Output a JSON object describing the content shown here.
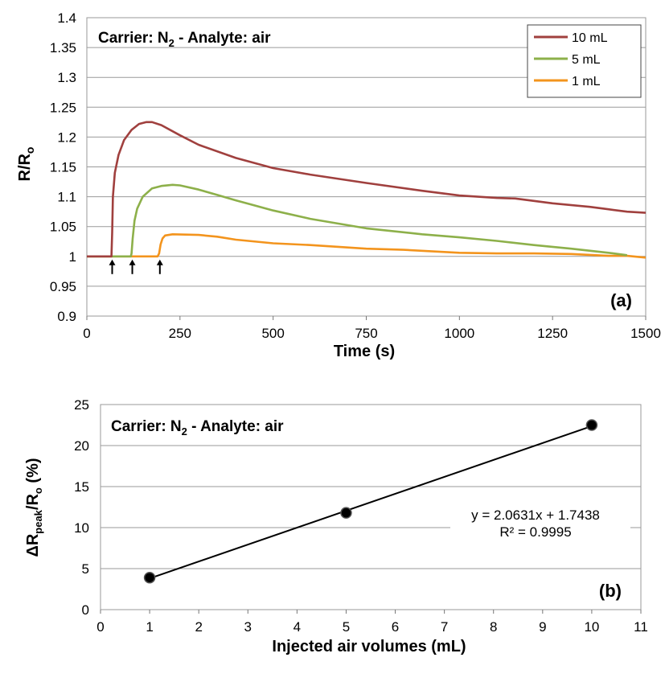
{
  "chart_data": [
    {
      "type": "line",
      "panel_label": "(a)",
      "annotation": {
        "prefix": "Carrier: N",
        "sub": "2",
        "suffix": " - Analyte: air"
      },
      "xlabel": "Time (s)",
      "ylabel": {
        "main": "R/R",
        "sub": "o"
      },
      "xlim": [
        0,
        1500
      ],
      "ylim": [
        0.9,
        1.4
      ],
      "xticks": [
        0,
        250,
        500,
        750,
        1000,
        1250,
        1500
      ],
      "yticks": [
        "0.9",
        "0.95",
        "1",
        "1.05",
        "1.1",
        "1.15",
        "1.2",
        "1.25",
        "1.3",
        "1.35",
        "1.4"
      ],
      "grid": "horizontal",
      "legend_position": "top-right",
      "injection_arrows_x": [
        68,
        122,
        196
      ],
      "series": [
        {
          "name": "10 mL",
          "color": "#a0403e",
          "x": [
            0,
            66,
            68,
            70,
            75,
            85,
            100,
            120,
            140,
            160,
            175,
            200,
            250,
            300,
            400,
            500,
            600,
            750,
            900,
            1000,
            1100,
            1150,
            1250,
            1350,
            1400,
            1450,
            1500
          ],
          "y": [
            1.0,
            1.0,
            1.04,
            1.1,
            1.14,
            1.17,
            1.195,
            1.212,
            1.222,
            1.225,
            1.225,
            1.22,
            1.203,
            1.187,
            1.165,
            1.148,
            1.137,
            1.123,
            1.11,
            1.102,
            1.098,
            1.097,
            1.089,
            1.083,
            1.079,
            1.075,
            1.073
          ]
        },
        {
          "name": "5 mL",
          "color": "#8db04a",
          "x": [
            0,
            118,
            120,
            123,
            128,
            135,
            150,
            175,
            200,
            230,
            250,
            300,
            350,
            400,
            500,
            600,
            750,
            900,
            1000,
            1100,
            1200,
            1300,
            1400,
            1450
          ],
          "y": [
            1.0,
            1.0,
            1.005,
            1.03,
            1.06,
            1.08,
            1.1,
            1.114,
            1.118,
            1.12,
            1.119,
            1.112,
            1.103,
            1.094,
            1.077,
            1.063,
            1.047,
            1.037,
            1.032,
            1.026,
            1.019,
            1.013,
            1.006,
            1.002
          ]
        },
        {
          "name": "1 mL",
          "color": "#f3941d",
          "x": [
            0,
            190,
            194,
            198,
            203,
            210,
            230,
            300,
            350,
            400,
            500,
            600,
            750,
            850,
            1000,
            1100,
            1200,
            1300,
            1400,
            1450,
            1500
          ],
          "y": [
            1.0,
            1.0,
            1.005,
            1.02,
            1.03,
            1.035,
            1.037,
            1.036,
            1.033,
            1.028,
            1.022,
            1.019,
            1.013,
            1.011,
            1.006,
            1.005,
            1.005,
            1.004,
            1.001,
            1.001,
            0.998
          ]
        }
      ]
    },
    {
      "type": "scatter",
      "panel_label": "(b)",
      "annotation": {
        "prefix": "Carrier: N",
        "sub": "2",
        "suffix": " - Analyte: air"
      },
      "xlabel": "Injected air volumes (mL)",
      "ylabel": {
        "main": "ΔR",
        "sub1": "peak",
        "mid": "/R",
        "sub2": "o",
        "suffix": " (%)"
      },
      "xlim": [
        0,
        11
      ],
      "ylim": [
        0,
        25
      ],
      "xticks": [
        0,
        1,
        2,
        3,
        4,
        5,
        6,
        7,
        8,
        9,
        10,
        11
      ],
      "yticks": [
        0,
        5,
        10,
        15,
        20,
        25
      ],
      "grid": "horizontal",
      "series": [
        {
          "name": "",
          "color": "#000000",
          "x": [
            1,
            5,
            10
          ],
          "y": [
            3.9,
            11.8,
            22.5
          ]
        }
      ],
      "trendline": {
        "slope": 2.0631,
        "intercept": 1.7438,
        "x_range": [
          1,
          10
        ],
        "equation": "y = 2.0631x + 1.7438",
        "r_squared": "R² = 0.9995"
      }
    }
  ]
}
